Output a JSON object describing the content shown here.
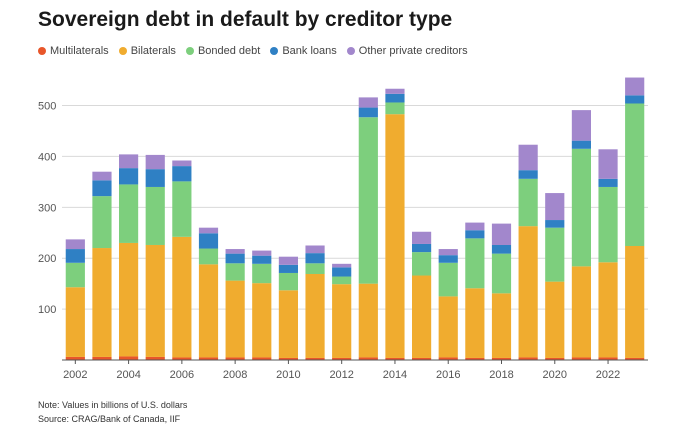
{
  "title": "Sovereign debt in default by creditor type",
  "note": "Note: Values in billions of U.S. dollars",
  "source": "Source: CRAG/Bank of Canada, IIF",
  "colors": {
    "Multilaterals": "#e8562a",
    "Bilaterals": "#f0ac2f",
    "Bonded debt": "#7dcf7d",
    "Bank loans": "#2f80c4",
    "Other private creditors": "#a287cc"
  },
  "chart_data": {
    "type": "bar",
    "stacked": true,
    "title": "Sovereign debt in default by creditor type",
    "xlabel": "",
    "ylabel": "",
    "ylim": [
      0,
      560
    ],
    "yticks": [
      100,
      200,
      300,
      400,
      500
    ],
    "xticks": [
      "2002",
      "2004",
      "2006",
      "2008",
      "2010",
      "2012",
      "2014",
      "2016",
      "2018",
      "2020",
      "2022"
    ],
    "categories": [
      "2002",
      "2003",
      "2004",
      "2005",
      "2006",
      "2007",
      "2008",
      "2009",
      "2010",
      "2011",
      "2012",
      "2013",
      "2014",
      "2015",
      "2016",
      "2017",
      "2018",
      "2019",
      "2020",
      "2021",
      "2022",
      "2023"
    ],
    "legend_position": "top-left",
    "grid": true,
    "series": [
      {
        "name": "Multilaterals",
        "values": [
          6,
          6,
          7,
          6,
          5,
          5,
          5,
          5,
          4,
          4,
          4,
          5,
          4,
          4,
          5,
          4,
          4,
          5,
          4,
          5,
          5,
          4
        ]
      },
      {
        "name": "Bilaterals",
        "values": [
          137,
          214,
          223,
          220,
          237,
          183,
          151,
          146,
          133,
          165,
          145,
          145,
          479,
          162,
          120,
          137,
          127,
          258,
          150,
          179,
          187,
          220
        ]
      },
      {
        "name": "Bonded debt",
        "values": [
          48,
          102,
          115,
          114,
          109,
          31,
          34,
          38,
          34,
          21,
          15,
          327,
          23,
          46,
          66,
          98,
          78,
          93,
          106,
          231,
          148,
          280
        ]
      },
      {
        "name": "Bank loans",
        "values": [
          27,
          31,
          32,
          35,
          30,
          30,
          19,
          16,
          16,
          20,
          18,
          19,
          17,
          16,
          15,
          16,
          17,
          17,
          15,
          16,
          16,
          16
        ]
      },
      {
        "name": "Other private creditors",
        "values": [
          19,
          17,
          27,
          28,
          11,
          11,
          9,
          10,
          16,
          15,
          7,
          20,
          10,
          24,
          12,
          15,
          42,
          50,
          53,
          60,
          58,
          35
        ]
      }
    ]
  }
}
